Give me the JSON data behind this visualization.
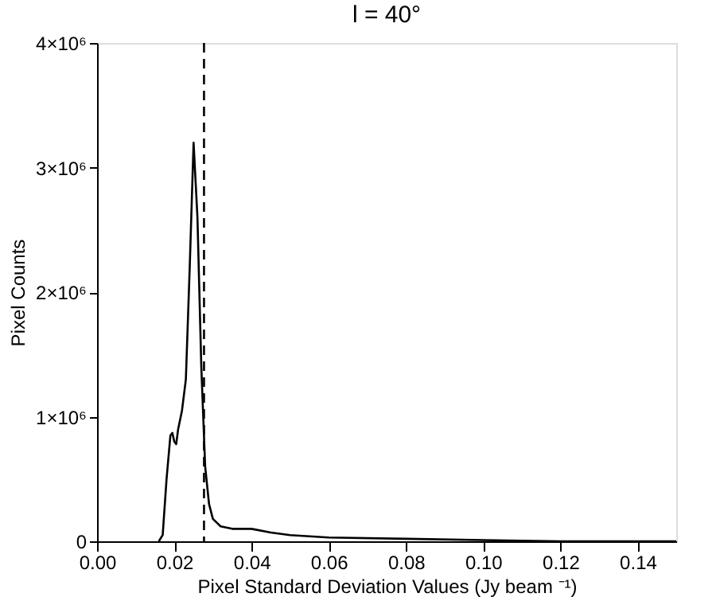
{
  "chart_data": {
    "type": "line",
    "title": "l = 40°",
    "xlabel": "Pixel Standard Deviation Values (Jy beam ⁻¹)",
    "ylabel": "Pixel Counts",
    "x": [
      0.016,
      0.017,
      0.018,
      0.019,
      0.0195,
      0.02,
      0.0205,
      0.021,
      0.022,
      0.023,
      0.024,
      0.025,
      0.026,
      0.027,
      0.028,
      0.029,
      0.03,
      0.032,
      0.035,
      0.04,
      0.045,
      0.05,
      0.06,
      0.08,
      0.1,
      0.12,
      0.15
    ],
    "series": [
      {
        "color": "#000000",
        "values": [
          0,
          50000,
          500000,
          850000,
          870000,
          800000,
          780000,
          900000,
          1050000,
          1300000,
          2200000,
          3200000,
          2600000,
          1400000,
          600000,
          300000,
          180000,
          120000,
          100000,
          100000,
          70000,
          50000,
          30000,
          20000,
          10000,
          0,
          0
        ]
      }
    ],
    "xlim": [
      0,
      0.15
    ],
    "ylim": [
      0,
      4000000
    ],
    "xticks": [
      {
        "value": 0,
        "label": "0.00"
      },
      0.02,
      0.04,
      0.06,
      0.08,
      {
        "value": 0.1,
        "label": "0.10"
      },
      0.12,
      0.14
    ],
    "yticks": [
      0,
      {
        "value": 1000000,
        "label": "1×10⁶"
      },
      {
        "value": 2000000,
        "label": "2×10⁶"
      },
      {
        "value": 3000000,
        "label": "3×10⁶"
      },
      {
        "value": 4000000,
        "label": "4×10⁶"
      }
    ],
    "ref_lines": [
      {
        "axis": "x",
        "value": 0.0277,
        "color": "#000000",
        "line_style": "dashed"
      }
    ],
    "grid": false,
    "legend": false,
    "marker": "none",
    "line_style": "solid"
  }
}
